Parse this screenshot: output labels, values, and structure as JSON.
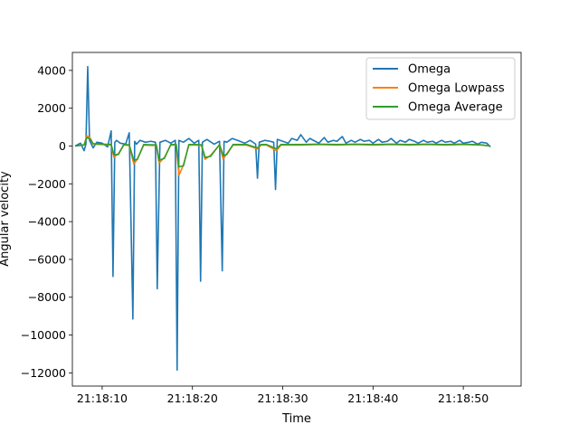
{
  "chart_data": {
    "type": "line",
    "title": "",
    "xlabel": "Time",
    "ylabel": "Angular velocity",
    "x_tick_labels": [
      "21:18:10",
      "21:18:20",
      "21:18:30",
      "21:18:40",
      "21:18:50"
    ],
    "x_ticks": [
      10,
      20,
      30,
      40,
      50
    ],
    "xlim": [
      6.7,
      56.4
    ],
    "y_ticks": [
      4000,
      2000,
      0,
      -2000,
      -4000,
      -6000,
      -8000,
      -10000,
      -12000
    ],
    "y_tick_labels": [
      "4000",
      "2000",
      "0",
      "−2000",
      "−4000",
      "−6000",
      "−8000",
      "−10000",
      "−12000"
    ],
    "ylim": [
      -12700,
      4950
    ],
    "grid": false,
    "legend_position": "top-right",
    "series": [
      {
        "name": "Omega",
        "color": "#1f77b4",
        "x": [
          7.0,
          7.6,
          8.0,
          8.2,
          8.4,
          8.6,
          9.0,
          9.4,
          10.0,
          10.6,
          11.0,
          11.2,
          11.4,
          11.6,
          12.0,
          12.6,
          13.0,
          13.4,
          13.6,
          13.8,
          14.2,
          14.8,
          15.4,
          15.9,
          16.1,
          16.4,
          17.0,
          17.6,
          18.1,
          18.3,
          18.5,
          19.0,
          19.6,
          20.2,
          20.7,
          20.9,
          21.1,
          21.6,
          22.4,
          23.0,
          23.3,
          23.5,
          23.8,
          24.4,
          25.0,
          25.8,
          26.4,
          27.0,
          27.2,
          27.4,
          28.0,
          28.6,
          29.0,
          29.2,
          29.4,
          30.0,
          30.6,
          31.0,
          31.6,
          32.0,
          32.6,
          33.0,
          33.6,
          34.0,
          34.6,
          35.0,
          35.6,
          36.0,
          36.6,
          37.0,
          37.6,
          38.0,
          38.6,
          39.0,
          39.6,
          40.0,
          40.6,
          41.0,
          41.6,
          42.0,
          42.6,
          43.0,
          43.6,
          44.0,
          44.6,
          45.0,
          45.6,
          46.0,
          46.6,
          47.0,
          47.6,
          48.0,
          48.6,
          49.0,
          49.6,
          50.0,
          50.6,
          51.0,
          51.6,
          52.0,
          52.6,
          53.0
        ],
        "y": [
          0,
          150,
          -250,
          100,
          4200,
          300,
          -100,
          200,
          150,
          -50,
          800,
          -6900,
          200,
          300,
          150,
          100,
          700,
          -9150,
          250,
          100,
          300,
          200,
          250,
          200,
          -7550,
          200,
          300,
          150,
          300,
          -11850,
          300,
          200,
          400,
          150,
          300,
          -7150,
          200,
          350,
          100,
          250,
          -6600,
          250,
          200,
          400,
          300,
          150,
          300,
          100,
          -1700,
          200,
          300,
          250,
          200,
          -2300,
          350,
          250,
          150,
          400,
          300,
          600,
          200,
          400,
          250,
          150,
          450,
          200,
          300,
          250,
          500,
          150,
          300,
          200,
          350,
          250,
          300,
          150,
          350,
          200,
          250,
          400,
          150,
          300,
          200,
          350,
          250,
          150,
          300,
          200,
          250,
          150,
          300,
          200,
          250,
          150,
          300,
          150,
          200,
          250,
          100,
          200,
          150,
          -50
        ]
      },
      {
        "name": "Omega Lowpass",
        "color": "#ff7f0e",
        "x": [
          7.0,
          8.0,
          8.3,
          8.7,
          9.0,
          10.0,
          11.0,
          11.3,
          11.8,
          12.4,
          13.0,
          13.5,
          13.9,
          14.6,
          15.5,
          16.0,
          16.3,
          16.9,
          17.6,
          18.2,
          18.5,
          19.0,
          19.6,
          20.4,
          21.0,
          21.4,
          22.0,
          23.0,
          23.4,
          23.8,
          24.5,
          26.0,
          27.2,
          27.6,
          28.2,
          29.3,
          29.8,
          30.5,
          32.0,
          34.0,
          36.0,
          38.0,
          40.0,
          42.0,
          44.0,
          46.0,
          48.0,
          50.0,
          52.0,
          53.0
        ],
        "y": [
          0,
          50,
          550,
          400,
          100,
          80,
          50,
          -600,
          -400,
          50,
          30,
          -950,
          -700,
          50,
          30,
          30,
          -900,
          -600,
          50,
          50,
          -1550,
          -1000,
          50,
          50,
          30,
          -700,
          -500,
          50,
          -700,
          -400,
          50,
          50,
          -150,
          50,
          50,
          -250,
          50,
          50,
          50,
          80,
          50,
          80,
          50,
          80,
          50,
          80,
          50,
          80,
          50,
          0
        ]
      },
      {
        "name": "Omega Average",
        "color": "#2ca02c",
        "x": [
          7.0,
          8.0,
          8.3,
          8.7,
          9.0,
          10.0,
          11.0,
          11.3,
          11.8,
          12.4,
          13.0,
          13.5,
          13.9,
          14.6,
          15.5,
          16.0,
          16.3,
          16.9,
          17.6,
          18.2,
          18.5,
          19.0,
          19.6,
          20.4,
          21.0,
          21.4,
          22.0,
          23.0,
          23.4,
          23.8,
          24.5,
          26.0,
          27.2,
          27.6,
          28.2,
          29.3,
          29.8,
          30.5,
          32.0,
          34.0,
          36.0,
          38.0,
          40.0,
          42.0,
          44.0,
          46.0,
          48.0,
          50.0,
          52.0,
          53.0
        ],
        "y": [
          0,
          60,
          450,
          350,
          120,
          100,
          80,
          -450,
          -450,
          80,
          60,
          -750,
          -700,
          80,
          60,
          60,
          -750,
          -650,
          80,
          80,
          -1100,
          -1050,
          80,
          80,
          60,
          -600,
          -550,
          80,
          -500,
          -450,
          80,
          80,
          -100,
          80,
          80,
          -150,
          80,
          80,
          80,
          100,
          80,
          100,
          80,
          100,
          80,
          100,
          80,
          100,
          60,
          0
        ]
      }
    ]
  }
}
